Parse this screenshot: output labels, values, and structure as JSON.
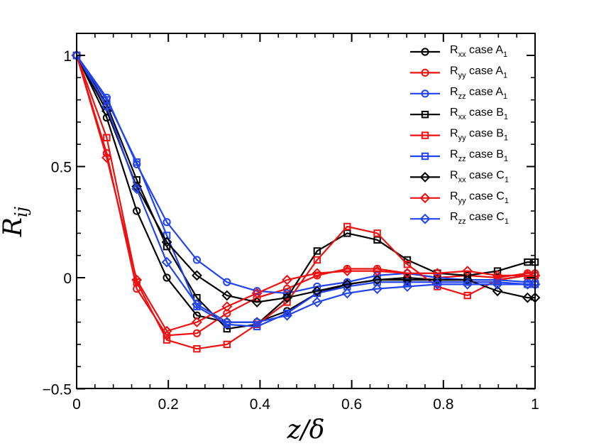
{
  "chart_data": {
    "type": "line",
    "title": "",
    "xlabel": "z/δ",
    "ylabel": "R",
    "ylabel_sub": "ij",
    "xlim": [
      0,
      1
    ],
    "ylim": [
      -0.5,
      1.1
    ],
    "xticks": [
      0,
      0.2,
      0.4,
      0.6,
      0.8,
      1
    ],
    "xtick_labels": [
      "0",
      "0.2",
      "0.4",
      "0.6",
      "0.8",
      "1"
    ],
    "yticks": [
      -0.5,
      0,
      0.5,
      1
    ],
    "ytick_labels": [
      "−0.5",
      "0",
      "0.5",
      "1"
    ],
    "x": [
      0,
      0.0656,
      0.1311,
      0.1967,
      0.2623,
      0.3279,
      0.3934,
      0.459,
      0.5246,
      0.5902,
      0.6557,
      0.7213,
      0.7869,
      0.8525,
      0.918,
      0.9836,
      1.0
    ],
    "legend_position": "top-right",
    "colors": {
      "black": "#000000",
      "red": "#ee1111",
      "blue": "#2244ee"
    },
    "series": [
      {
        "name": "Rxx case A1",
        "base": "R",
        "sub": "xx",
        "label": " case A",
        "label_sub": "1",
        "color": "black",
        "marker": "circle",
        "values": [
          1.0,
          0.72,
          0.3,
          0.0,
          -0.17,
          -0.2,
          -0.2,
          -0.15,
          -0.07,
          -0.03,
          -0.01,
          0.0,
          -0.01,
          -0.01,
          -0.01,
          0.01,
          0.01
        ]
      },
      {
        "name": "Ryy case A1",
        "base": "R",
        "sub": "yy",
        "label": " case A",
        "label_sub": "1",
        "color": "red",
        "marker": "circle",
        "values": [
          1.0,
          0.56,
          -0.05,
          -0.26,
          -0.25,
          -0.16,
          -0.09,
          -0.05,
          0.01,
          0.04,
          0.04,
          0.02,
          0.0,
          0.01,
          0.0,
          0.02,
          0.02
        ]
      },
      {
        "name": "Rzz case A1",
        "base": "R",
        "sub": "zz",
        "label": " case A",
        "label_sub": "1",
        "color": "blue",
        "marker": "circle",
        "values": [
          1.0,
          0.81,
          0.51,
          0.25,
          0.08,
          -0.02,
          -0.06,
          -0.07,
          -0.04,
          -0.02,
          0.01,
          0.02,
          0.0,
          -0.01,
          -0.01,
          -0.02,
          -0.02
        ]
      },
      {
        "name": "Rxx case B1",
        "base": "R",
        "sub": "xx",
        "label": " case B",
        "label_sub": "1",
        "color": "black",
        "marker": "square",
        "values": [
          1.0,
          0.78,
          0.44,
          0.14,
          -0.09,
          -0.23,
          -0.21,
          -0.09,
          0.12,
          0.2,
          0.17,
          0.08,
          0.02,
          0.01,
          0.03,
          0.07,
          0.07
        ]
      },
      {
        "name": "Ryy case B1",
        "base": "R",
        "sub": "yy",
        "label": " case B",
        "label_sub": "1",
        "color": "red",
        "marker": "square",
        "values": [
          1.0,
          0.63,
          -0.02,
          -0.28,
          -0.32,
          -0.3,
          -0.21,
          -0.11,
          0.08,
          0.23,
          0.2,
          0.06,
          -0.04,
          -0.08,
          -0.01,
          0.01,
          0.01
        ]
      },
      {
        "name": "Rzz case B1",
        "base": "R",
        "sub": "zz",
        "label": " case B",
        "label_sub": "1",
        "color": "blue",
        "marker": "square",
        "values": [
          1.0,
          0.8,
          0.52,
          0.19,
          -0.13,
          -0.21,
          -0.22,
          -0.16,
          -0.07,
          -0.04,
          -0.02,
          -0.02,
          -0.02,
          -0.02,
          -0.02,
          -0.03,
          -0.03
        ]
      },
      {
        "name": "Rxx case C1",
        "base": "R",
        "sub": "xx",
        "label": " case C",
        "label_sub": "1",
        "color": "black",
        "marker": "diamond",
        "values": [
          1.0,
          0.75,
          0.41,
          0.16,
          0.01,
          -0.08,
          -0.11,
          -0.09,
          -0.06,
          -0.03,
          -0.01,
          -0.01,
          -0.01,
          -0.01,
          -0.06,
          -0.09,
          -0.09
        ]
      },
      {
        "name": "Ryy case C1",
        "base": "R",
        "sub": "yy",
        "label": " case C",
        "label_sub": "1",
        "color": "red",
        "marker": "diamond",
        "values": [
          1.0,
          0.54,
          -0.01,
          -0.24,
          -0.2,
          -0.13,
          -0.07,
          -0.01,
          0.02,
          0.03,
          0.03,
          0.02,
          0.02,
          0.03,
          0.01,
          0.01,
          0.01
        ]
      },
      {
        "name": "Rzz case C1",
        "base": "R",
        "sub": "zz",
        "label": " case C",
        "label_sub": "1",
        "color": "blue",
        "marker": "diamond",
        "values": [
          1.0,
          0.77,
          0.4,
          0.07,
          -0.12,
          -0.2,
          -0.2,
          -0.17,
          -0.11,
          -0.07,
          -0.05,
          -0.04,
          -0.03,
          -0.03,
          -0.03,
          -0.03,
          -0.03
        ]
      }
    ]
  }
}
